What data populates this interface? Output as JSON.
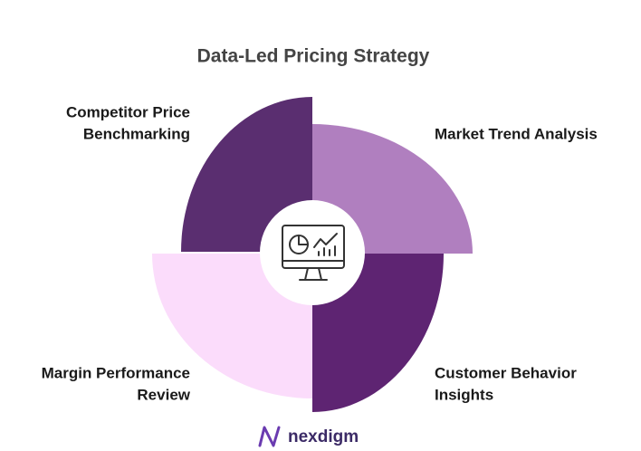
{
  "header": {
    "title": "Data-Led Pricing Strategy"
  },
  "segments": [
    {
      "label": [
        "Competitor Price",
        "Benchmarking"
      ]
    },
    {
      "label": [
        "Market Trend Analysis"
      ]
    },
    {
      "label": [
        "Customer Behavior",
        "Insights"
      ]
    },
    {
      "label": [
        "Margin Performance",
        "Review"
      ]
    }
  ],
  "footer": {
    "logo": "nexdigm"
  }
}
